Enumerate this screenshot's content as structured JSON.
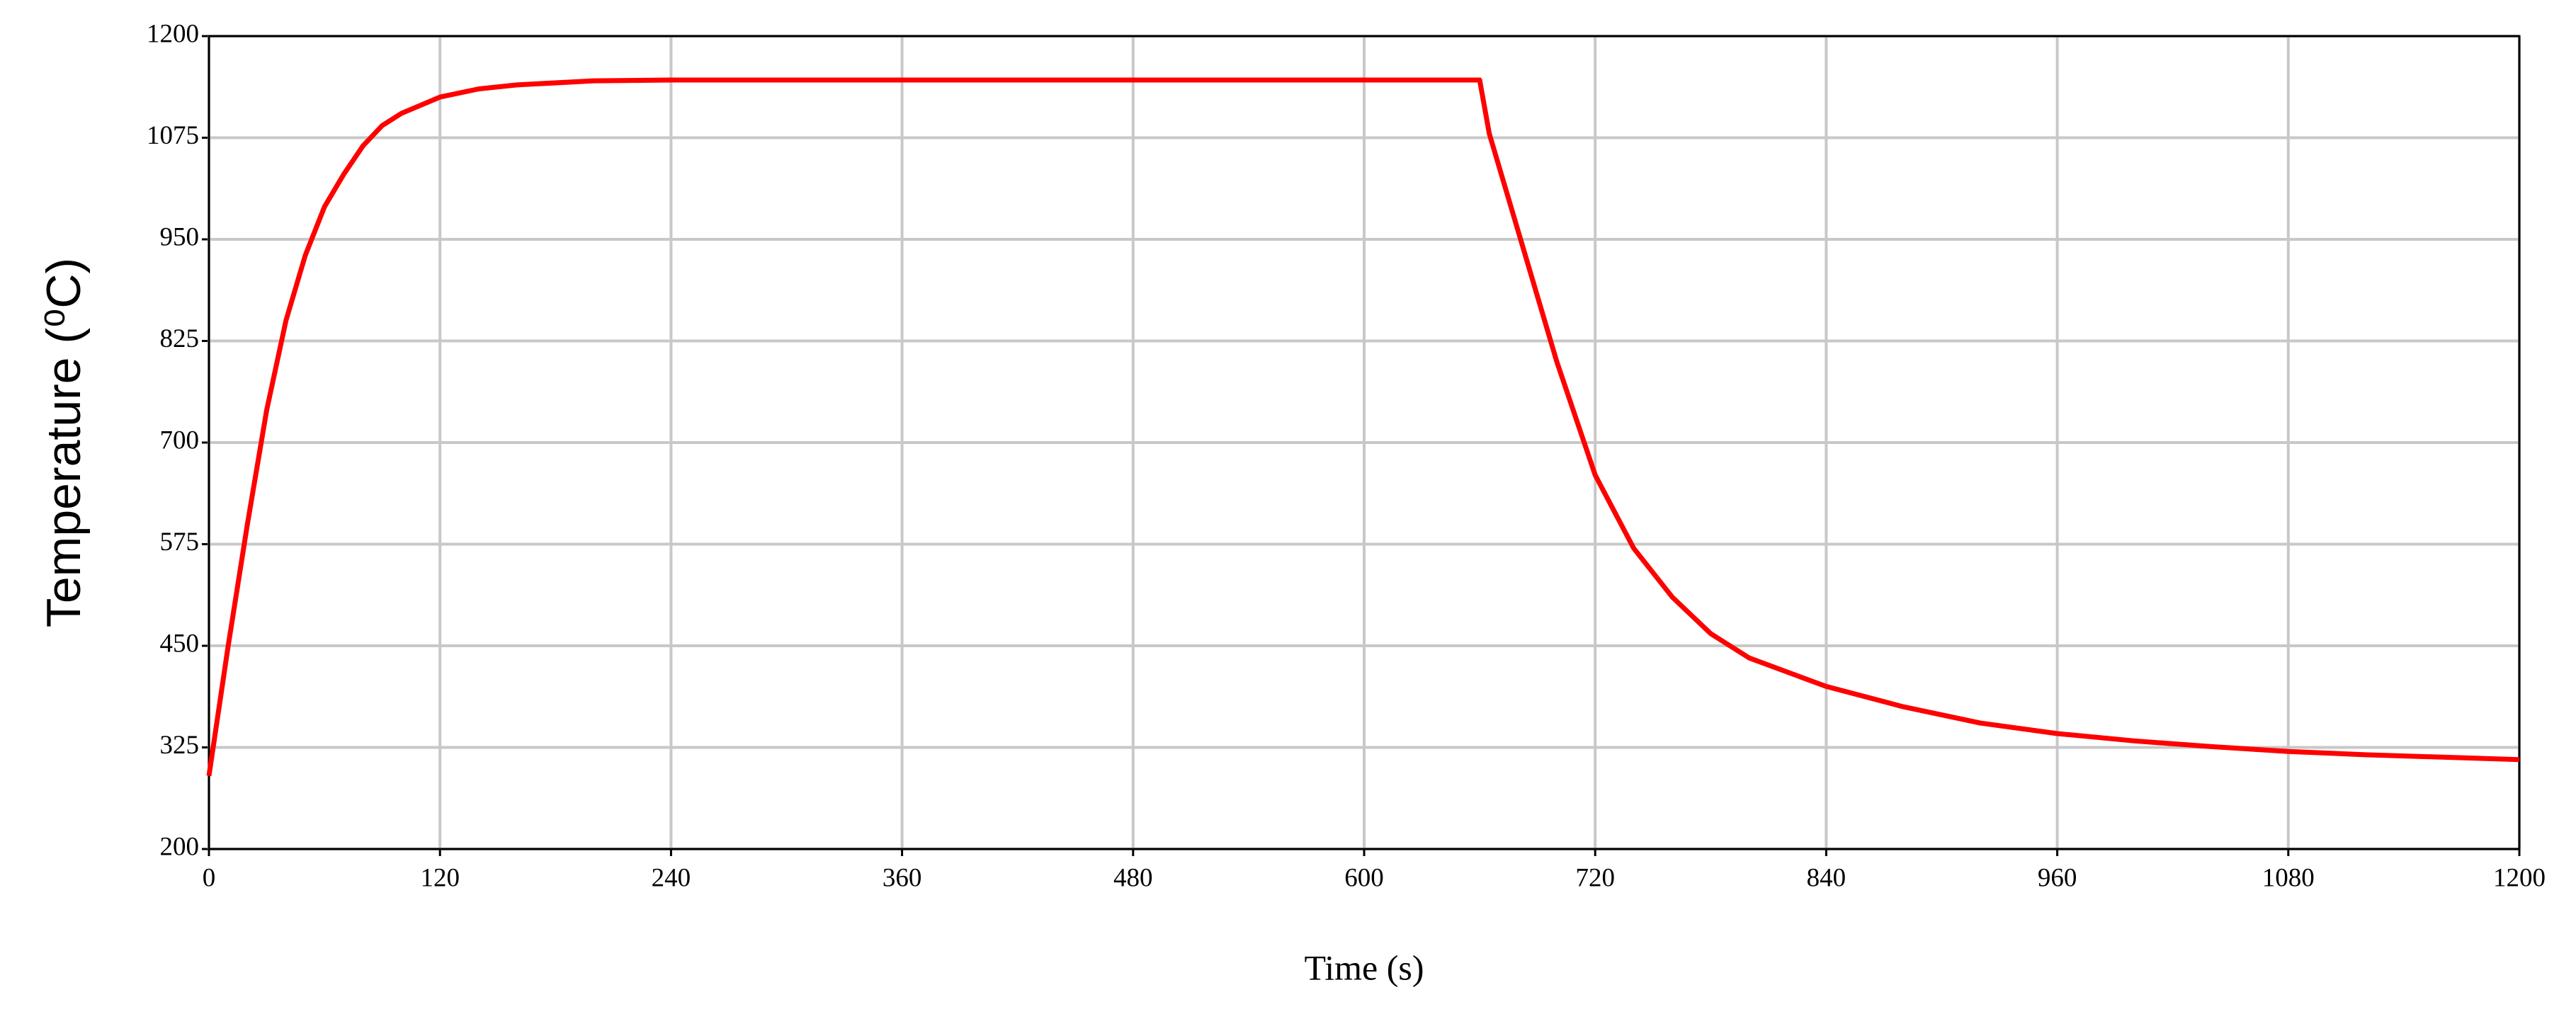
{
  "chart_data": {
    "type": "line",
    "xlabel": "Time (s)",
    "ylabel": "Temperature (⁰C)",
    "x": [
      0,
      10,
      20,
      30,
      40,
      50,
      60,
      70,
      80,
      90,
      100,
      120,
      140,
      160,
      200,
      240,
      660,
      665,
      680,
      700,
      720,
      740,
      760,
      780,
      800,
      840,
      880,
      920,
      960,
      1000,
      1040,
      1080,
      1120,
      1160,
      1200
    ],
    "values": [
      290,
      450,
      600,
      740,
      850,
      930,
      990,
      1030,
      1065,
      1090,
      1105,
      1125,
      1135,
      1140,
      1145,
      1146,
      1146,
      1080,
      960,
      800,
      660,
      570,
      510,
      465,
      435,
      400,
      375,
      355,
      342,
      333,
      326,
      320,
      316,
      313,
      310
    ],
    "color": "#ff0000",
    "xlim": [
      0,
      1200
    ],
    "xticks": [
      0,
      120,
      240,
      360,
      480,
      600,
      720,
      840,
      960,
      1080,
      1200
    ],
    "ylim": [
      200,
      1200
    ],
    "yticks": [
      200,
      325,
      450,
      575,
      700,
      825,
      950,
      1075,
      1200
    ],
    "grid": true
  }
}
